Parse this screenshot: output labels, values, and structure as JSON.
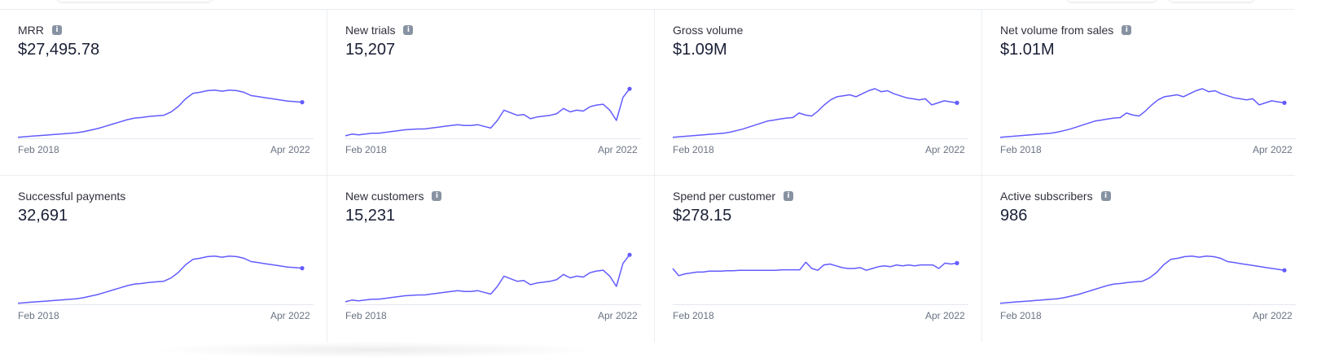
{
  "accent_color": "#635bff",
  "info_icon_name": "info-icon",
  "cards": [
    {
      "title": "MRR",
      "info": true,
      "value": "$27,495.78",
      "axis_start": "Feb 2018",
      "axis_end": "Apr 2022",
      "sparkline": [
        0,
        0.5,
        1,
        1.5,
        2,
        2.5,
        3,
        3.5,
        4,
        5,
        6.5,
        8,
        10,
        12,
        14,
        16,
        17.5,
        18,
        19,
        19.5,
        20,
        23,
        28,
        35,
        40,
        41,
        42.5,
        43,
        42,
        43,
        42.5,
        41,
        38,
        37,
        36,
        35,
        34,
        33,
        32.5,
        32
      ],
      "ylim": [
        -1,
        48
      ]
    },
    {
      "title": "New trials",
      "info": true,
      "value": "15,207",
      "axis_start": "Feb 2018",
      "axis_end": "Apr 2022",
      "sparkline": [
        0,
        2,
        1,
        2,
        3,
        3,
        4,
        5,
        6,
        7,
        7.5,
        8,
        8,
        9,
        10,
        11,
        12,
        13,
        12,
        12,
        13,
        11,
        9,
        18,
        30,
        27,
        24,
        25,
        20,
        22,
        23,
        24,
        26,
        32,
        28,
        30,
        29,
        34,
        36,
        37,
        30,
        18,
        45,
        55
      ],
      "ylim": [
        -3,
        60
      ]
    },
    {
      "title": "Gross volume",
      "info": false,
      "value": "$1.09M",
      "axis_start": "Feb 2018",
      "axis_end": "Apr 2022",
      "sparkline": [
        0,
        0.5,
        1,
        1.5,
        2,
        2.5,
        3,
        3.5,
        4,
        5,
        6.5,
        8,
        10,
        12,
        14,
        16,
        17,
        18,
        19,
        19.5,
        24,
        22,
        21,
        26,
        32,
        37,
        40,
        41,
        42,
        40,
        43,
        46,
        48,
        45,
        46,
        43,
        41,
        39,
        38,
        37,
        38,
        32,
        34,
        36,
        35,
        34
      ],
      "ylim": [
        -1,
        52
      ]
    },
    {
      "title": "Net volume from sales",
      "info": true,
      "value": "$1.01M",
      "axis_start": "Feb 2018",
      "axis_end": "Apr 2022",
      "sparkline": [
        0,
        0.5,
        1,
        1.5,
        2,
        2.5,
        3,
        3.5,
        4,
        5,
        6.5,
        8,
        10,
        12,
        14,
        16,
        17,
        18,
        19,
        19.5,
        24,
        22,
        21,
        26,
        32,
        37,
        40,
        41,
        42,
        40,
        43,
        46,
        48,
        45,
        46,
        43,
        41,
        39,
        38,
        37,
        38,
        32,
        34,
        36,
        35,
        34
      ],
      "ylim": [
        -1,
        52
      ]
    },
    {
      "title": "Successful payments",
      "info": false,
      "value": "32,691",
      "axis_start": "Feb 2018",
      "axis_end": "Apr 2022",
      "sparkline": [
        0,
        0.5,
        1,
        1.5,
        2,
        2.5,
        3,
        3.5,
        4,
        5,
        6.5,
        8,
        10,
        12,
        14,
        16,
        17.5,
        18,
        19,
        19.5,
        20,
        23,
        28,
        35,
        40,
        41,
        42.5,
        43,
        42,
        43,
        42.5,
        41,
        38,
        37,
        36,
        35,
        34,
        33,
        32.5,
        32
      ],
      "ylim": [
        -1,
        48
      ]
    },
    {
      "title": "New customers",
      "info": true,
      "value": "15,231",
      "axis_start": "Feb 2018",
      "axis_end": "Apr 2022",
      "sparkline": [
        0,
        2,
        1,
        2,
        3,
        3,
        4,
        5,
        6,
        7,
        7.5,
        8,
        8,
        9,
        10,
        11,
        12,
        13,
        12,
        12,
        13,
        11,
        9,
        18,
        30,
        27,
        24,
        25,
        20,
        22,
        23,
        24,
        26,
        32,
        28,
        30,
        29,
        34,
        36,
        37,
        30,
        18,
        45,
        55
      ],
      "ylim": [
        -3,
        60
      ]
    },
    {
      "title": "Spend per customer",
      "info": true,
      "value": "$278.15",
      "axis_start": "Feb 2018",
      "axis_end": "Apr 2022",
      "sparkline": [
        40,
        32,
        34,
        35,
        36,
        36,
        37,
        37,
        37,
        37.5,
        37.5,
        38,
        38,
        38,
        38,
        38,
        38,
        38,
        38.5,
        38.5,
        38.5,
        38.5,
        47,
        40,
        38,
        44,
        45,
        43,
        41,
        40,
        40,
        41,
        38,
        40,
        42,
        43,
        42,
        44,
        43,
        44,
        43,
        44,
        44,
        44,
        40,
        46,
        45,
        46
      ],
      "ylim": [
        0,
        60
      ]
    },
    {
      "title": "Active subscribers",
      "info": true,
      "value": "986",
      "axis_start": "Feb 2018",
      "axis_end": "Apr 2022",
      "sparkline": [
        0,
        0.5,
        1,
        1.5,
        2,
        2.5,
        3,
        3.5,
        4,
        5,
        6.5,
        8,
        10,
        12,
        14,
        16,
        17.5,
        18,
        19,
        19.5,
        20,
        23,
        28,
        35,
        40,
        41,
        42.5,
        43,
        42,
        43,
        42.5,
        41,
        38,
        37,
        36,
        35,
        34,
        33,
        32,
        31,
        30
      ],
      "ylim": [
        -1,
        48
      ]
    }
  ]
}
